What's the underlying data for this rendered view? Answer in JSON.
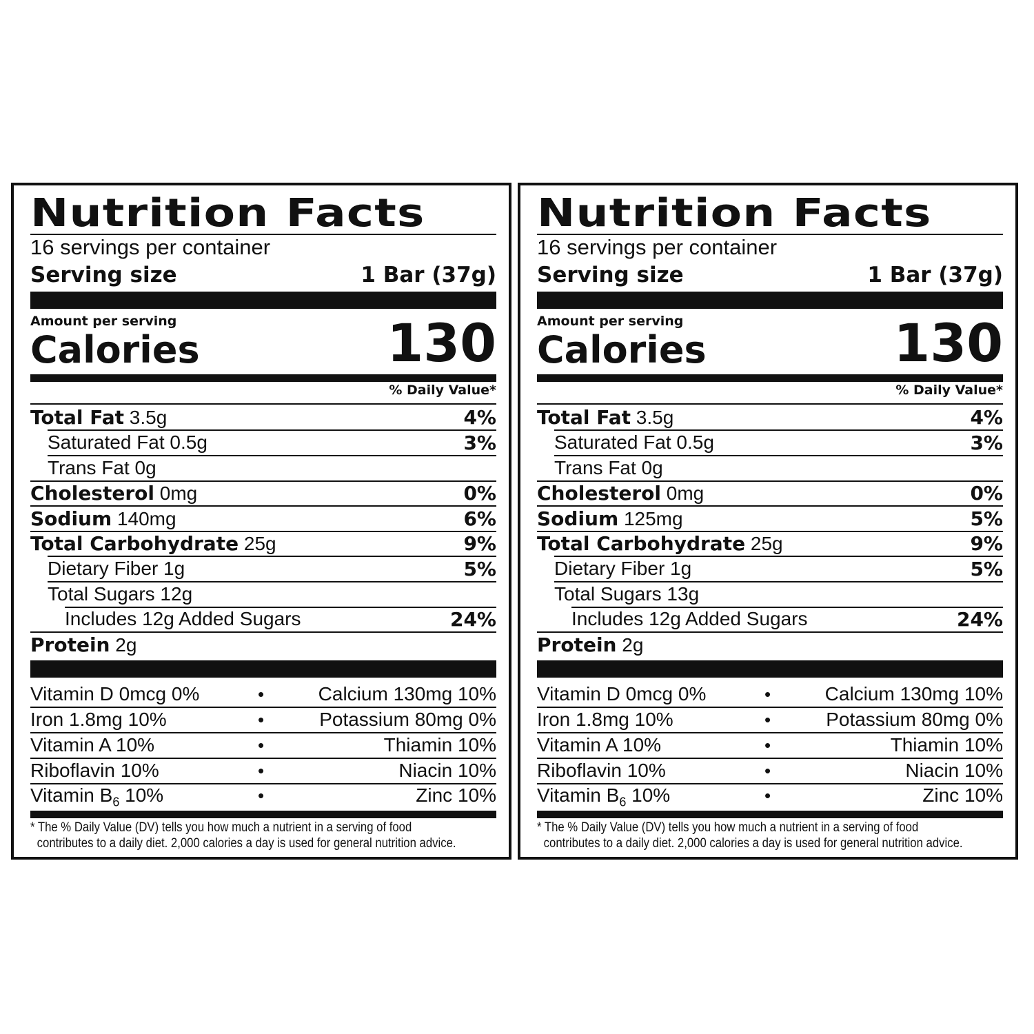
{
  "panels": [
    {
      "title": "Nutrition Facts",
      "servings": "16 servings per container",
      "serving_size_label": "Serving size",
      "serving_size_value": "1 Bar (37g)",
      "amount_per_serving": "Amount per serving",
      "calories_label": "Calories",
      "calories_value": "130",
      "daily_value_header": "% Daily Value*",
      "nutrients": {
        "total_fat": {
          "label": "Total Fat",
          "amount": "3.5g",
          "dv": "4%"
        },
        "saturated_fat": {
          "label": "Saturated Fat 0.5g",
          "dv": "3%"
        },
        "trans_fat": {
          "label": "Trans Fat 0g"
        },
        "cholesterol": {
          "label": "Cholesterol",
          "amount": "0mg",
          "dv": "0%"
        },
        "sodium": {
          "label": "Sodium",
          "amount": "140mg",
          "dv": "6%"
        },
        "total_carb": {
          "label": "Total Carbohydrate",
          "amount": "25g",
          "dv": "9%"
        },
        "fiber": {
          "label": "Dietary Fiber 1g",
          "dv": "5%"
        },
        "total_sugars": {
          "label": "Total Sugars 12g"
        },
        "added_sugars": {
          "label": "Includes 12g Added Sugars",
          "dv": "24%"
        },
        "protein": {
          "label": "Protein",
          "amount": "2g"
        }
      },
      "vitamins": [
        {
          "left": "Vitamin D 0mcg 0%",
          "right": "Calcium 130mg 10%"
        },
        {
          "left": "Iron 1.8mg 10%",
          "right": "Potassium 80mg 0%"
        },
        {
          "left": "Vitamin A 10%",
          "right": "Thiamin 10%"
        },
        {
          "left": "Riboflavin 10%",
          "right": "Niacin 10%"
        },
        {
          "left_pre": "Vitamin B",
          "left_sub": "6",
          "left_post": " 10%",
          "right": "Zinc 10%"
        }
      ],
      "bullet": "•",
      "footnote_line1": "* The % Daily Value (DV) tells you how much a nutrient in a serving of food",
      "footnote_line2": "contributes to a daily diet. 2,000 calories a day is used for general nutrition advice."
    },
    {
      "title": "Nutrition Facts",
      "servings": "16 servings per container",
      "serving_size_label": "Serving size",
      "serving_size_value": "1 Bar (37g)",
      "amount_per_serving": "Amount per serving",
      "calories_label": "Calories",
      "calories_value": "130",
      "daily_value_header": "% Daily Value*",
      "nutrients": {
        "total_fat": {
          "label": "Total Fat",
          "amount": "3.5g",
          "dv": "4%"
        },
        "saturated_fat": {
          "label": "Saturated Fat 0.5g",
          "dv": "3%"
        },
        "trans_fat": {
          "label": "Trans Fat 0g"
        },
        "cholesterol": {
          "label": "Cholesterol",
          "amount": "0mg",
          "dv": "0%"
        },
        "sodium": {
          "label": "Sodium",
          "amount": "125mg",
          "dv": "5%"
        },
        "total_carb": {
          "label": "Total Carbohydrate",
          "amount": "25g",
          "dv": "9%"
        },
        "fiber": {
          "label": "Dietary Fiber 1g",
          "dv": "5%"
        },
        "total_sugars": {
          "label": "Total Sugars 13g"
        },
        "added_sugars": {
          "label": "Includes 12g Added Sugars",
          "dv": "24%"
        },
        "protein": {
          "label": "Protein",
          "amount": "2g"
        }
      },
      "vitamins": [
        {
          "left": "Vitamin D 0mcg 0%",
          "right": "Calcium 130mg 10%"
        },
        {
          "left": "Iron 1.8mg 10%",
          "right": "Potassium 80mg 0%"
        },
        {
          "left": "Vitamin A 10%",
          "right": "Thiamin 10%"
        },
        {
          "left": "Riboflavin 10%",
          "right": "Niacin 10%"
        },
        {
          "left_pre": "Vitamin B",
          "left_sub": "6",
          "left_post": " 10%",
          "right": "Zinc 10%"
        }
      ],
      "bullet": "•",
      "footnote_line1": "* The % Daily Value (DV) tells you how much a nutrient in a serving of food",
      "footnote_line2": "contributes to a daily diet. 2,000 calories a day is used for general nutrition advice."
    }
  ]
}
